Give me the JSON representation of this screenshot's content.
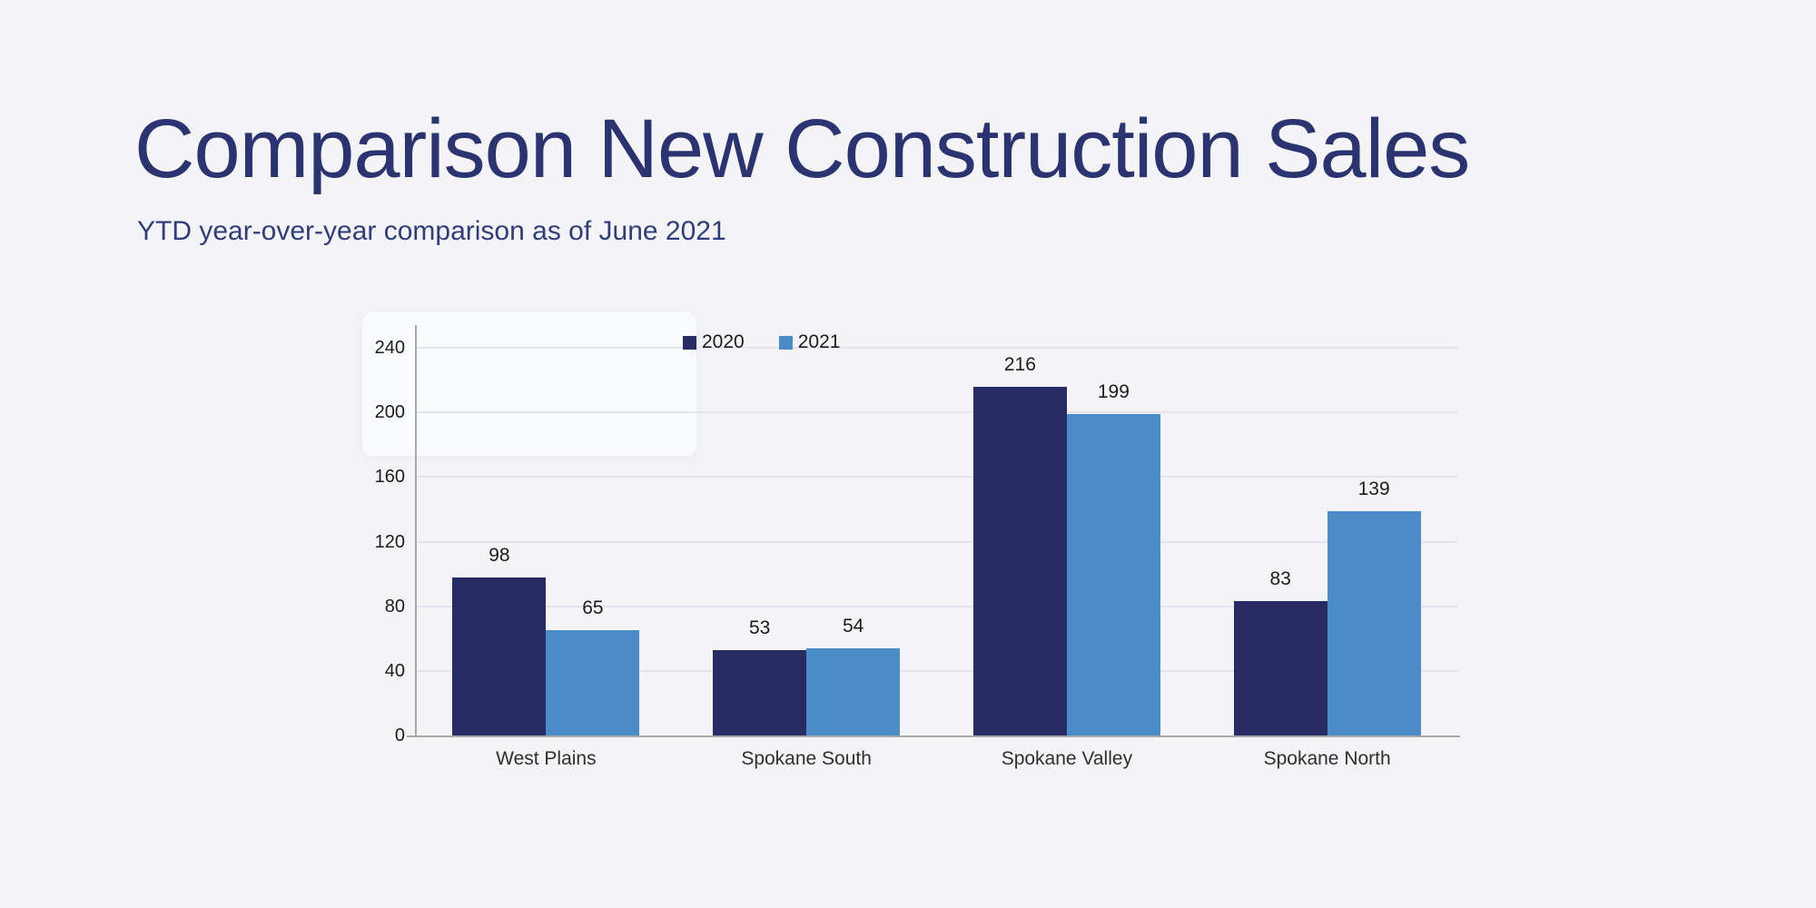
{
  "slide": {
    "title": "Comparison New Construction Sales",
    "subtitle": "YTD year-over-year comparison as of June 2021"
  },
  "colors": {
    "background": "#f4f4f6",
    "title_text": "#2b3470",
    "subtitle_text": "#313d7a",
    "series_2020": "#272c64",
    "series_2021": "#4a8bc8",
    "axis_line": "#a8a8a8",
    "gridline": "#e3e4ef",
    "chart_text": "#1c1c1c"
  },
  "chart_data": {
    "type": "bar",
    "title": "Comparison New Construction Sales",
    "subtitle": "YTD year-over-year comparison as of June 2021",
    "categories": [
      "West Plains",
      "Spokane South",
      "Spokane Valley",
      "Spokane North"
    ],
    "series": [
      {
        "name": "2020",
        "color": "#272c64",
        "values": [
          98,
          53,
          216,
          83
        ]
      },
      {
        "name": "2021",
        "color": "#4a8bc8",
        "values": [
          65,
          54,
          199,
          139
        ]
      }
    ],
    "xlabel": "",
    "ylabel": "",
    "y_ticks": [
      0,
      40,
      80,
      120,
      160,
      200,
      240
    ],
    "ylim": [
      0,
      240
    ],
    "grid": true,
    "legend_position": "top-center",
    "value_labels": true
  }
}
